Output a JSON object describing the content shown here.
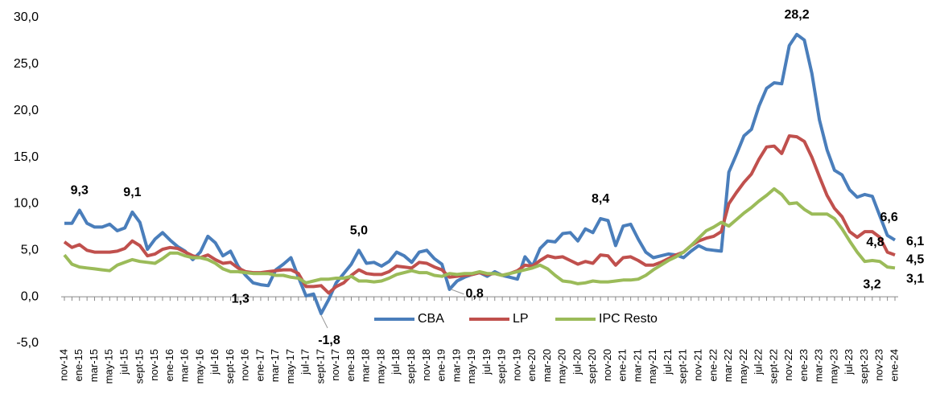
{
  "chart_data": {
    "type": "line",
    "categories": [
      "nov-14",
      null,
      "ene-15",
      null,
      "mar-15",
      null,
      "may-15",
      null,
      "jul-15",
      null,
      "sept-15",
      null,
      "nov-15",
      null,
      "ene-16",
      null,
      "mar-16",
      null,
      "may-16",
      null,
      "jul-16",
      null,
      "sept-16",
      null,
      "nov-16",
      null,
      "ene-17",
      null,
      "mar-17",
      null,
      "may-17",
      null,
      "jul-17",
      null,
      "sept-17",
      null,
      "nov-17",
      null,
      "ene-18",
      null,
      "mar-18",
      null,
      "may-18",
      null,
      "jul-18",
      null,
      "sept-18",
      null,
      "nov-18",
      null,
      "ene-19",
      null,
      "mar-19",
      null,
      "may-19",
      null,
      "jul-19",
      null,
      "sept-19",
      null,
      "nov-19",
      null,
      "ene-20",
      null,
      "mar-20",
      null,
      "may-20",
      null,
      "jul-20",
      null,
      "sept-20",
      null,
      "nov-20",
      null,
      "ene-21",
      null,
      "mar-21",
      null,
      "may-21",
      null,
      "jul-21",
      null,
      "sept-21",
      null,
      "nov-21",
      null,
      "ene-22",
      null,
      "mar-22",
      null,
      "may-22",
      null,
      "jul-22",
      null,
      "sept-22",
      null,
      "nov-22",
      null,
      "ene-23",
      null,
      "mar-23",
      null,
      "may-23",
      null,
      "jul-23",
      null,
      "sept-23",
      null,
      "nov-23",
      null,
      "ene-24"
    ],
    "series": [
      {
        "name": "CBA",
        "color": "#4a7ebb",
        "values": [
          7.9,
          7.9,
          9.3,
          7.9,
          7.5,
          7.5,
          7.8,
          7.1,
          7.4,
          9.1,
          8.0,
          5.1,
          6.2,
          6.9,
          6.1,
          5.4,
          4.9,
          4.0,
          4.8,
          6.5,
          5.8,
          4.4,
          4.9,
          3.3,
          2.3,
          1.5,
          1.3,
          1.2,
          2.9,
          3.5,
          4.2,
          2.1,
          0.1,
          0.3,
          -1.8,
          -0.3,
          1.5,
          2.5,
          3.5,
          5.0,
          3.6,
          3.7,
          3.3,
          3.8,
          4.8,
          4.4,
          3.7,
          4.8,
          5.0,
          4.1,
          3.5,
          0.8,
          1.7,
          2.1,
          2.4,
          2.6,
          2.2,
          2.7,
          2.3,
          2.1,
          1.9,
          4.3,
          3.3,
          5.2,
          6.0,
          5.9,
          6.8,
          6.9,
          6.0,
          7.3,
          6.9,
          8.4,
          8.2,
          5.5,
          7.6,
          7.8,
          6.2,
          4.8,
          4.2,
          4.4,
          4.6,
          4.5,
          4.2,
          4.9,
          5.5,
          5.1,
          5.0,
          4.9,
          13.4,
          15.3,
          17.3,
          18.0,
          20.5,
          22.4,
          23.0,
          22.9,
          27.0,
          28.2,
          27.6,
          24.0,
          19.0,
          15.8,
          13.6,
          13.1,
          11.5,
          10.7,
          11.0,
          10.8,
          8.7,
          6.6,
          6.1
        ],
        "value_labels": [
          null,
          null,
          "9,3",
          null,
          null,
          null,
          null,
          null,
          null,
          "9,1",
          null,
          null,
          null,
          null,
          null,
          null,
          null,
          null,
          null,
          null,
          null,
          null,
          null,
          null,
          null,
          null,
          "1,3",
          null,
          null,
          null,
          null,
          null,
          null,
          null,
          "-1,8",
          null,
          null,
          null,
          null,
          "5,0",
          null,
          null,
          null,
          null,
          null,
          null,
          null,
          null,
          null,
          null,
          null,
          "0,8",
          null,
          null,
          null,
          null,
          null,
          null,
          null,
          null,
          null,
          null,
          null,
          null,
          null,
          null,
          null,
          null,
          null,
          null,
          null,
          "8,4",
          null,
          null,
          null,
          null,
          null,
          null,
          null,
          null,
          null,
          null,
          null,
          null,
          null,
          null,
          null,
          null,
          null,
          null,
          null,
          null,
          null,
          null,
          null,
          null,
          null,
          "28,2",
          null,
          null,
          null,
          null,
          null,
          null,
          null,
          null,
          null,
          null,
          null,
          "6,6",
          "6,1"
        ]
      },
      {
        "name": "LP",
        "color": "#c0504d",
        "values": [
          5.9,
          5.3,
          5.6,
          5.0,
          4.8,
          4.8,
          4.8,
          4.9,
          5.2,
          6.0,
          5.5,
          4.4,
          4.6,
          5.1,
          5.3,
          5.2,
          4.8,
          4.4,
          4.2,
          4.5,
          4.0,
          3.6,
          3.7,
          3.1,
          2.7,
          2.6,
          2.6,
          2.7,
          2.8,
          2.9,
          2.9,
          2.5,
          1.1,
          1.1,
          1.2,
          0.4,
          1.1,
          1.5,
          2.3,
          2.9,
          2.5,
          2.4,
          2.4,
          2.7,
          3.3,
          3.2,
          3.1,
          3.7,
          3.6,
          3.2,
          2.9,
          2.1,
          2.2,
          2.3,
          2.4,
          2.6,
          2.4,
          2.5,
          2.3,
          2.5,
          2.8,
          3.4,
          3.3,
          3.9,
          4.4,
          4.2,
          4.3,
          3.9,
          3.5,
          3.8,
          3.6,
          4.5,
          4.4,
          3.4,
          4.2,
          4.3,
          3.9,
          3.4,
          3.4,
          3.7,
          4.1,
          4.5,
          4.8,
          5.5,
          6.0,
          6.3,
          6.5,
          7.0,
          10.0,
          11.2,
          12.3,
          13.2,
          14.8,
          16.1,
          16.2,
          15.4,
          17.3,
          17.2,
          16.7,
          15.0,
          12.9,
          10.9,
          9.5,
          8.6,
          7.0,
          6.4,
          7.0,
          7.0,
          6.4,
          4.8,
          4.5
        ],
        "value_labels": [
          null,
          null,
          null,
          null,
          null,
          null,
          null,
          null,
          null,
          null,
          null,
          null,
          null,
          null,
          null,
          null,
          null,
          null,
          null,
          null,
          null,
          null,
          null,
          null,
          null,
          null,
          null,
          null,
          null,
          null,
          null,
          null,
          null,
          null,
          null,
          null,
          null,
          null,
          null,
          null,
          null,
          null,
          null,
          null,
          null,
          null,
          null,
          null,
          null,
          null,
          null,
          null,
          null,
          null,
          null,
          null,
          null,
          null,
          null,
          null,
          null,
          null,
          null,
          null,
          null,
          null,
          null,
          null,
          null,
          null,
          null,
          null,
          null,
          null,
          null,
          null,
          null,
          null,
          null,
          null,
          null,
          null,
          null,
          null,
          null,
          null,
          null,
          null,
          null,
          null,
          null,
          null,
          null,
          null,
          null,
          null,
          null,
          null,
          null,
          null,
          null,
          null,
          null,
          null,
          null,
          null,
          null,
          null,
          null,
          "4,8",
          "4,5"
        ]
      },
      {
        "name": "IPC Resto",
        "color": "#9bbb59",
        "values": [
          4.5,
          3.5,
          3.2,
          3.1,
          3.0,
          2.9,
          2.8,
          3.4,
          3.7,
          4.0,
          3.8,
          3.7,
          3.6,
          4.1,
          4.7,
          4.7,
          4.4,
          4.2,
          4.2,
          4.0,
          3.6,
          3.0,
          2.7,
          2.7,
          2.6,
          2.5,
          2.5,
          2.5,
          2.3,
          2.3,
          2.1,
          2.0,
          1.5,
          1.7,
          1.9,
          1.9,
          2.0,
          2.0,
          2.2,
          1.7,
          1.7,
          1.6,
          1.7,
          2.0,
          2.4,
          2.6,
          2.8,
          2.6,
          2.6,
          2.3,
          2.2,
          2.5,
          2.4,
          2.5,
          2.5,
          2.7,
          2.5,
          2.5,
          2.3,
          2.5,
          2.7,
          2.9,
          3.1,
          3.4,
          3.0,
          2.3,
          1.7,
          1.6,
          1.4,
          1.5,
          1.7,
          1.6,
          1.6,
          1.7,
          1.8,
          1.8,
          1.9,
          2.3,
          2.9,
          3.4,
          3.9,
          4.3,
          4.8,
          5.5,
          6.3,
          7.1,
          7.5,
          8.0,
          7.6,
          8.3,
          9.0,
          9.6,
          10.3,
          10.9,
          11.6,
          11.0,
          10.0,
          10.1,
          9.4,
          8.9,
          8.9,
          8.9,
          8.4,
          7.3,
          6.0,
          4.8,
          3.8,
          3.9,
          3.8,
          3.2,
          3.1
        ],
        "value_labels": [
          null,
          null,
          null,
          null,
          null,
          null,
          null,
          null,
          null,
          null,
          null,
          null,
          null,
          null,
          null,
          null,
          null,
          null,
          null,
          null,
          null,
          null,
          null,
          null,
          null,
          null,
          null,
          null,
          null,
          null,
          null,
          null,
          null,
          null,
          null,
          null,
          null,
          null,
          null,
          null,
          null,
          null,
          null,
          null,
          null,
          null,
          null,
          null,
          null,
          null,
          null,
          null,
          null,
          null,
          null,
          null,
          null,
          null,
          null,
          null,
          null,
          null,
          null,
          null,
          null,
          null,
          null,
          null,
          null,
          null,
          null,
          null,
          null,
          null,
          null,
          null,
          null,
          null,
          null,
          null,
          null,
          null,
          null,
          null,
          null,
          null,
          null,
          null,
          null,
          null,
          null,
          null,
          null,
          null,
          null,
          null,
          null,
          null,
          null,
          null,
          null,
          null,
          null,
          null,
          null,
          null,
          null,
          null,
          null,
          "3,2",
          "3,1"
        ]
      }
    ],
    "ylim": [
      -5,
      30
    ],
    "yticks": [
      {
        "value": -5,
        "label": "-5,0"
      },
      {
        "value": 0,
        "label": "0,0"
      },
      {
        "value": 5,
        "label": "5,0"
      },
      {
        "value": 10,
        "label": "10,0"
      },
      {
        "value": 15,
        "label": "15,0"
      },
      {
        "value": 20,
        "label": "20,0"
      },
      {
        "value": 25,
        "label": "25,0"
      },
      {
        "value": 30,
        "label": "30,0"
      }
    ],
    "legend": "bottom"
  }
}
